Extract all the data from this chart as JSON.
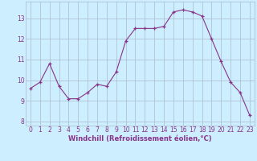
{
  "x": [
    0,
    1,
    2,
    3,
    4,
    5,
    6,
    7,
    8,
    9,
    10,
    11,
    12,
    13,
    14,
    15,
    16,
    17,
    18,
    19,
    20,
    21,
    22,
    23
  ],
  "y": [
    9.6,
    9.9,
    10.8,
    9.7,
    9.1,
    9.1,
    9.4,
    9.8,
    9.7,
    10.4,
    11.9,
    12.5,
    12.5,
    12.5,
    12.6,
    13.3,
    13.4,
    13.3,
    13.1,
    12.0,
    10.9,
    9.9,
    9.4,
    8.3
  ],
  "line_color": "#883388",
  "marker": "+",
  "marker_size": 3.5,
  "bg_color": "#cceeff",
  "plot_bg_color": "#cceeff",
  "grid_color": "#aabbcc",
  "xlabel": "Windchill (Refroidissement éolien,°C)",
  "xlim": [
    -0.5,
    23.5
  ],
  "ylim": [
    7.8,
    13.8
  ],
  "yticks": [
    8,
    9,
    10,
    11,
    12,
    13
  ],
  "xticks": [
    0,
    1,
    2,
    3,
    4,
    5,
    6,
    7,
    8,
    9,
    10,
    11,
    12,
    13,
    14,
    15,
    16,
    17,
    18,
    19,
    20,
    21,
    22,
    23
  ],
  "tick_label_size": 5.5,
  "xlabel_size": 6.0,
  "bottom_bar_color": "#7755aa"
}
